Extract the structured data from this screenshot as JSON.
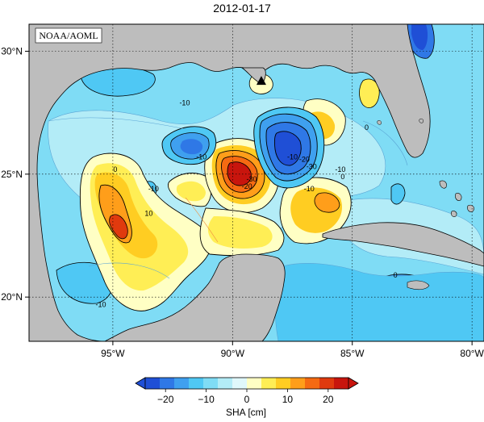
{
  "title": "2012-01-17",
  "credit": "NOAA/AOML",
  "map": {
    "lon_range": [
      -98.5,
      -79.5
    ],
    "lat_range": [
      18.2,
      31.1
    ],
    "lon_ticks": [
      {
        "value": -95,
        "label": "95°W"
      },
      {
        "value": -90,
        "label": "90°W"
      },
      {
        "value": -85,
        "label": "85°W"
      },
      {
        "value": -80,
        "label": "80°W"
      }
    ],
    "lat_ticks": [
      {
        "value": 20,
        "label": "20°N"
      },
      {
        "value": 25,
        "label": "25°N"
      },
      {
        "value": 30,
        "label": "30°N"
      }
    ],
    "gridlines": true,
    "marker": {
      "lon": -88.8,
      "lat": 28.8,
      "shape": "triangle"
    }
  },
  "contour_labels": [
    {
      "text": "-10",
      "lon": -91.3,
      "lat": 25.6
    },
    {
      "text": "-10",
      "lon": -93.3,
      "lat": 24.3
    },
    {
      "text": "0",
      "lon": -94.9,
      "lat": 25.1
    },
    {
      "text": "10",
      "lon": -93.5,
      "lat": 23.3
    },
    {
      "text": "-10",
      "lon": -95.5,
      "lat": 19.6
    },
    {
      "text": "-10",
      "lon": -92.0,
      "lat": 27.8
    },
    {
      "text": "-10",
      "lon": -87.5,
      "lat": 25.6
    },
    {
      "text": "-20",
      "lon": -87.0,
      "lat": 25.5
    },
    {
      "text": "-30",
      "lon": -86.7,
      "lat": 25.2
    },
    {
      "text": "-10",
      "lon": -86.8,
      "lat": 24.3
    },
    {
      "text": "-10",
      "lon": -85.5,
      "lat": 25.1
    },
    {
      "text": "-20",
      "lon": -89.4,
      "lat": 24.4
    },
    {
      "text": "-30",
      "lon": -89.2,
      "lat": 24.7
    },
    {
      "text": "0",
      "lon": -84.4,
      "lat": 26.8
    },
    {
      "text": "0",
      "lon": -85.4,
      "lat": 24.8
    },
    {
      "text": "0",
      "lon": -83.2,
      "lat": 20.8
    }
  ],
  "colorbar": {
    "label": "SHA [cm]",
    "min": -25,
    "max": 25,
    "ticks": [
      {
        "value": -20,
        "label": "−20"
      },
      {
        "value": -10,
        "label": "−10"
      },
      {
        "value": 0,
        "label": "0"
      },
      {
        "value": 10,
        "label": "10"
      },
      {
        "value": 20,
        "label": "20"
      }
    ],
    "colors": [
      "#1f4fd6",
      "#2f78e6",
      "#3fa0ef",
      "#4fc8f4",
      "#7fdcf5",
      "#b3ecf7",
      "#e0f8fb",
      "#ffffc4",
      "#ffee55",
      "#ffcd22",
      "#ff9e1a",
      "#f56a12",
      "#e03a0e",
      "#c8150d"
    ]
  },
  "palette": {
    "land": "#bdbdbd",
    "ocean_base": "#7fdcf5",
    "contour": "#000000",
    "neg_lines": "#5aa5d5",
    "pos_lines": "#f09040"
  }
}
